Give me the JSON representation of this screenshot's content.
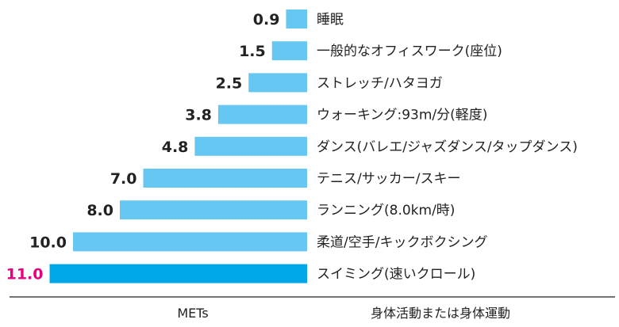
{
  "chart_data": {
    "type": "bar",
    "orientation": "horizontal",
    "categories": [
      "睡眠",
      "一般的なオフィスワーク(座位)",
      "ストレッチ/ハタヨガ",
      "ウォーキング:93m/分(軽度)",
      "ダンス(バレエ/ジャズダンス/タップダンス)",
      "テニス/サッカー/スキー",
      "ランニング(8.0km/時)",
      "柔道/空手/キックボクシング",
      "スイミング(速いクロール)"
    ],
    "values": [
      0.9,
      1.5,
      2.5,
      3.8,
      4.8,
      7.0,
      8.0,
      10.0,
      11.0
    ],
    "value_labels": [
      "0.9",
      "1.5",
      "2.5",
      "3.8",
      "4.8",
      "7.0",
      "8.0",
      "10.0",
      "11.0"
    ],
    "highlight_index": 8,
    "xlabel": "METs",
    "category_header": "身体活動または身体運動",
    "xlim": [
      0,
      11
    ],
    "grid": false,
    "colors": {
      "bar": "#66c8f2",
      "highlight_bar": "#00a8e8",
      "highlight_label": "#e4007f",
      "text": "#222222"
    }
  }
}
